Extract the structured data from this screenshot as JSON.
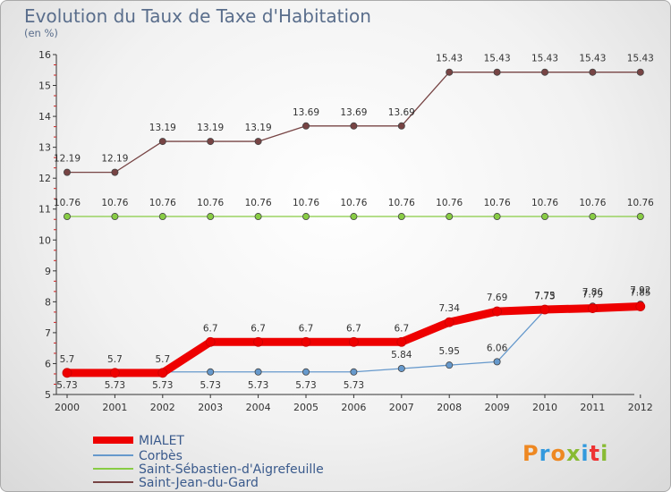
{
  "title": "Evolution du Taux de Taxe d'Habitation",
  "unit_label": "(en %)",
  "logo_text": "Proxiti",
  "colors": {
    "title": "#5a6e8c",
    "legend_text": "#3a5a8c",
    "axis": "#333333",
    "grid_dash": "#cc2222"
  },
  "chart_data": {
    "type": "line",
    "title": "Evolution du Taux de Taxe d'Habitation",
    "ylabel": "(en %)",
    "xlabel": "",
    "x": [
      "2000",
      "2001",
      "2002",
      "2003",
      "2004",
      "2005",
      "2006",
      "2007",
      "2008",
      "2009",
      "2010",
      "2011",
      "2012"
    ],
    "ylim": [
      5,
      16
    ],
    "yticks": [
      5,
      6,
      7,
      8,
      9,
      10,
      11,
      12,
      13,
      14,
      15,
      16
    ],
    "legend_position": "bottom-left",
    "series": [
      {
        "name": "MIALET",
        "color": "#ee0000",
        "values": [
          5.7,
          5.7,
          5.7,
          6.7,
          6.7,
          6.7,
          6.7,
          6.7,
          7.34,
          7.69,
          7.75,
          7.79,
          7.85
        ],
        "labels": [
          "5.7",
          "5.7",
          "5.7",
          "6.7",
          "6.7",
          "6.7",
          "6.7",
          "6.7",
          "7.34",
          "7.69",
          "7.75",
          "7.79",
          "7.85"
        ]
      },
      {
        "name": "Corbès",
        "color": "#6699cc",
        "values": [
          5.73,
          5.73,
          5.73,
          5.73,
          5.73,
          5.73,
          5.73,
          5.84,
          5.95,
          6.06,
          7.73,
          7.86,
          7.92
        ],
        "labels": [
          "5.73",
          "5.73",
          "5.73",
          "5.73",
          "5.73",
          "5.73",
          "5.73",
          "5.84",
          "5.95",
          "6.06",
          "7.73",
          "7.86",
          "7.92"
        ]
      },
      {
        "name": "Saint-Sébastien-d'Aigrefeuille",
        "color": "#88cc44",
        "values": [
          10.76,
          10.76,
          10.76,
          10.76,
          10.76,
          10.76,
          10.76,
          10.76,
          10.76,
          10.76,
          10.76,
          10.76,
          10.76
        ],
        "labels": [
          "10.76",
          "10.76",
          "10.76",
          "10.76",
          "10.76",
          "10.76",
          "10.76",
          "10.76",
          "10.76",
          "10.76",
          "10.76",
          "10.76",
          "10.76"
        ]
      },
      {
        "name": "Saint-Jean-du-Gard",
        "color": "#774444",
        "values": [
          12.19,
          12.19,
          13.19,
          13.19,
          13.19,
          13.69,
          13.69,
          13.69,
          15.43,
          15.43,
          15.43,
          15.43,
          15.43
        ],
        "labels": [
          "12.19",
          "12.19",
          "13.19",
          "13.19",
          "13.19",
          "13.69",
          "13.69",
          "13.69",
          "15.43",
          "15.43",
          "15.43",
          "15.43",
          "15.43"
        ]
      }
    ]
  }
}
